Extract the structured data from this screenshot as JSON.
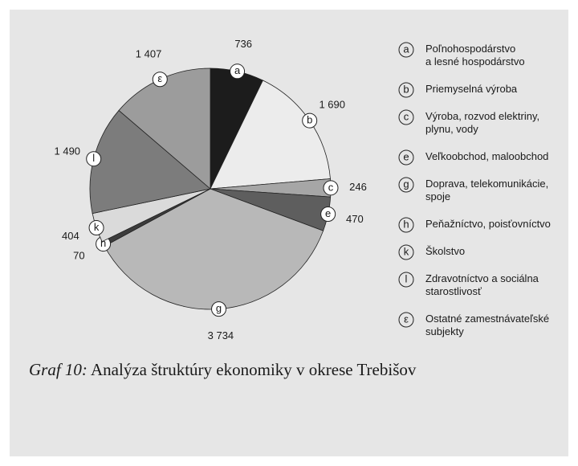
{
  "chart_data": {
    "type": "pie",
    "markers": [
      "a",
      "b",
      "c",
      "e",
      "g",
      "h",
      "k",
      "l",
      "ε"
    ],
    "categories": [
      [
        "Poľnohospodárstvo",
        "a lesné hospodárstvo"
      ],
      [
        "Priemyselná výroba"
      ],
      [
        "Výroba, rozvod elektriny,",
        "plynu, vody"
      ],
      [
        "Veľkoobchod, maloobchod"
      ],
      [
        "Doprava, telekomunikácie,",
        "spoje"
      ],
      [
        "Peňažníctvo, poisťovníctvo"
      ],
      [
        "Školstvo"
      ],
      [
        "Zdravotníctvo a sociálna",
        "starostlivosť"
      ],
      [
        "Ostatné zamestnávateľské",
        "subjekty"
      ]
    ],
    "values": [
      736,
      1690,
      246,
      470,
      3734,
      70,
      404,
      1490,
      1407
    ],
    "value_labels": [
      "736",
      "1 690",
      "246",
      "470",
      "3 734",
      "70",
      "404",
      "1 490",
      "1 407"
    ],
    "colors": [
      "#1c1c1c",
      "#ececec",
      "#a6a6a6",
      "#5e5e5e",
      "#b8b8b8",
      "#3c3c3c",
      "#dadada",
      "#7c7c7c",
      "#9c9c9c"
    ],
    "caption_label": "Graf 10:",
    "caption_text": " Analýza štruktúry ekonomiky v okrese Trebišov"
  }
}
